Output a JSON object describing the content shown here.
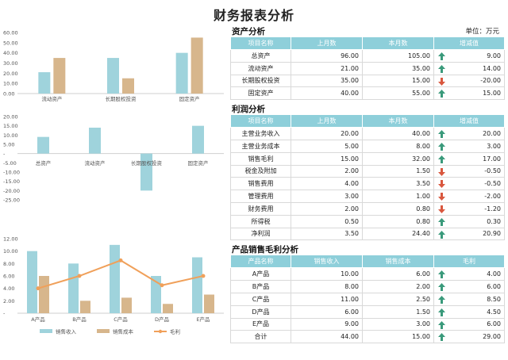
{
  "page": {
    "title": "财务报表分析"
  },
  "colors": {
    "blue": "#9fd3dc",
    "tan": "#d7b68c",
    "orange": "#f0a05a",
    "header": "#8ecfda",
    "up": "#3a9a7b",
    "down": "#d9573e"
  },
  "assets": {
    "title": "资产分析",
    "unit": "单位：万元",
    "headers": [
      "项目名称",
      "上月数",
      "本月数",
      "增减值"
    ],
    "rows": [
      {
        "name": "总资产",
        "last": "96.00",
        "curr": "105.00",
        "dir": "up",
        "change": "9.00"
      },
      {
        "name": "流动资产",
        "last": "21.00",
        "curr": "35.00",
        "dir": "up",
        "change": "14.00"
      },
      {
        "name": "长期股权投资",
        "last": "35.00",
        "curr": "15.00",
        "dir": "down",
        "change": "-20.00"
      },
      {
        "name": "固定资产",
        "last": "40.00",
        "curr": "55.00",
        "dir": "up",
        "change": "15.00"
      }
    ]
  },
  "profit": {
    "title": "利润分析",
    "headers": [
      "项目名称",
      "上月数",
      "本月数",
      "增减值"
    ],
    "rows": [
      {
        "name": "主营业务收入",
        "last": "20.00",
        "curr": "40.00",
        "dir": "up",
        "change": "20.00"
      },
      {
        "name": "主营业务成本",
        "last": "5.00",
        "curr": "8.00",
        "dir": "up",
        "change": "3.00"
      },
      {
        "name": "销售毛利",
        "last": "15.00",
        "curr": "32.00",
        "dir": "up",
        "change": "17.00"
      },
      {
        "name": "税金及附加",
        "last": "2.00",
        "curr": "1.50",
        "dir": "down",
        "change": "-0.50"
      },
      {
        "name": "销售费用",
        "last": "4.00",
        "curr": "3.50",
        "dir": "down",
        "change": "-0.50"
      },
      {
        "name": "管理费用",
        "last": "3.00",
        "curr": "1.00",
        "dir": "down",
        "change": "-2.00"
      },
      {
        "name": "财务费用",
        "last": "2.00",
        "curr": "0.80",
        "dir": "down",
        "change": "-1.20"
      },
      {
        "name": "所得税",
        "last": "0.50",
        "curr": "0.80",
        "dir": "up",
        "change": "0.30"
      },
      {
        "name": "净利润",
        "last": "3.50",
        "curr": "24.40",
        "dir": "up",
        "change": "20.90"
      }
    ]
  },
  "product": {
    "title": "产品销售毛利分析",
    "headers": [
      "产品名称",
      "销售收入",
      "销售成本",
      "毛利"
    ],
    "rows": [
      {
        "name": "A产品",
        "income": "10.00",
        "cost": "6.00",
        "dir": "up",
        "profit": "4.00"
      },
      {
        "name": "B产品",
        "income": "8.00",
        "cost": "2.00",
        "dir": "up",
        "profit": "6.00"
      },
      {
        "name": "C产品",
        "income": "11.00",
        "cost": "2.50",
        "dir": "up",
        "profit": "8.50"
      },
      {
        "name": "D产品",
        "income": "6.00",
        "cost": "1.50",
        "dir": "up",
        "profit": "4.50"
      },
      {
        "name": "E产品",
        "income": "9.00",
        "cost": "3.00",
        "dir": "up",
        "profit": "6.00"
      },
      {
        "name": "合计",
        "income": "44.00",
        "cost": "15.00",
        "dir": "up",
        "profit": "29.00"
      }
    ]
  },
  "chart_data": [
    {
      "type": "bar",
      "categories": [
        "流动资产",
        "长期股权投资",
        "固定资产"
      ],
      "series": [
        {
          "values": [
            21,
            35,
            40
          ],
          "color": "#9fd3dc"
        },
        {
          "values": [
            35,
            15,
            55
          ],
          "color": "#d7b68c"
        }
      ],
      "yticks": [
        "0.00",
        "10.00",
        "20.00",
        "30.00",
        "40.00",
        "50.00",
        "60.00"
      ],
      "ylim": [
        0,
        60
      ]
    },
    {
      "type": "bar",
      "categories": [
        "总资产",
        "流动资产",
        "长期股权投资",
        "固定资产"
      ],
      "series": [
        {
          "values": [
            9,
            14,
            -20,
            15
          ],
          "color": "#9fd3dc"
        }
      ],
      "yticks": [
        "-25.00",
        "-20.00",
        "-15.00",
        "-10.00",
        "-5.00",
        "-",
        "5.00",
        "10.00",
        "15.00",
        "20.00"
      ],
      "ylim": [
        -25,
        20
      ]
    },
    {
      "type": "bar",
      "categories": [
        "A产品",
        "B产品",
        "C产品",
        "D产品",
        "E产品"
      ],
      "series": [
        {
          "name": "销售收入",
          "kind": "bar",
          "values": [
            10,
            8,
            11,
            6,
            9
          ],
          "color": "#9fd3dc"
        },
        {
          "name": "销售成本",
          "kind": "bar",
          "values": [
            6,
            2,
            2.5,
            1.5,
            3
          ],
          "color": "#d7b68c"
        },
        {
          "name": "毛利",
          "kind": "line",
          "values": [
            4,
            6,
            8.5,
            4.5,
            6
          ],
          "color": "#f0a05a"
        }
      ],
      "yticks": [
        "-",
        "2.00",
        "4.00",
        "6.00",
        "8.00",
        "10.00",
        "12.00"
      ],
      "ylim": [
        0,
        12
      ],
      "legend": "bottom"
    }
  ]
}
